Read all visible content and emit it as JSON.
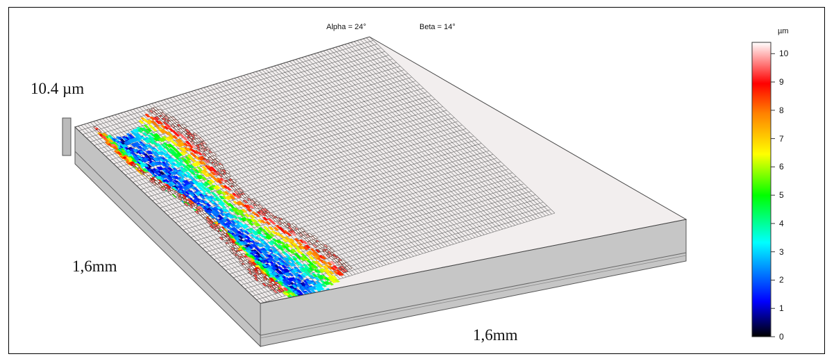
{
  "chart_data": {
    "type": "surface-3d",
    "view": {
      "alpha_label": "Alpha = 24°",
      "beta_label": "Beta = 14°"
    },
    "z_scale_label": "10.4 µm",
    "axes": {
      "x_extent_label": "1,6mm",
      "y_extent_label": "1,6mm"
    },
    "colorbar": {
      "unit": "µm",
      "ticks": [
        10,
        9,
        8,
        7,
        6,
        5,
        4,
        3,
        2,
        1,
        0
      ],
      "range": [
        0,
        10.4
      ],
      "colormap": [
        "#000000",
        "#0000ff",
        "#00ffff",
        "#00ff00",
        "#ffff00",
        "#ff8000",
        "#ff0000",
        "#ffffff"
      ]
    },
    "surface_plateau_um": 10.4,
    "trench_min_um": 1.5
  }
}
